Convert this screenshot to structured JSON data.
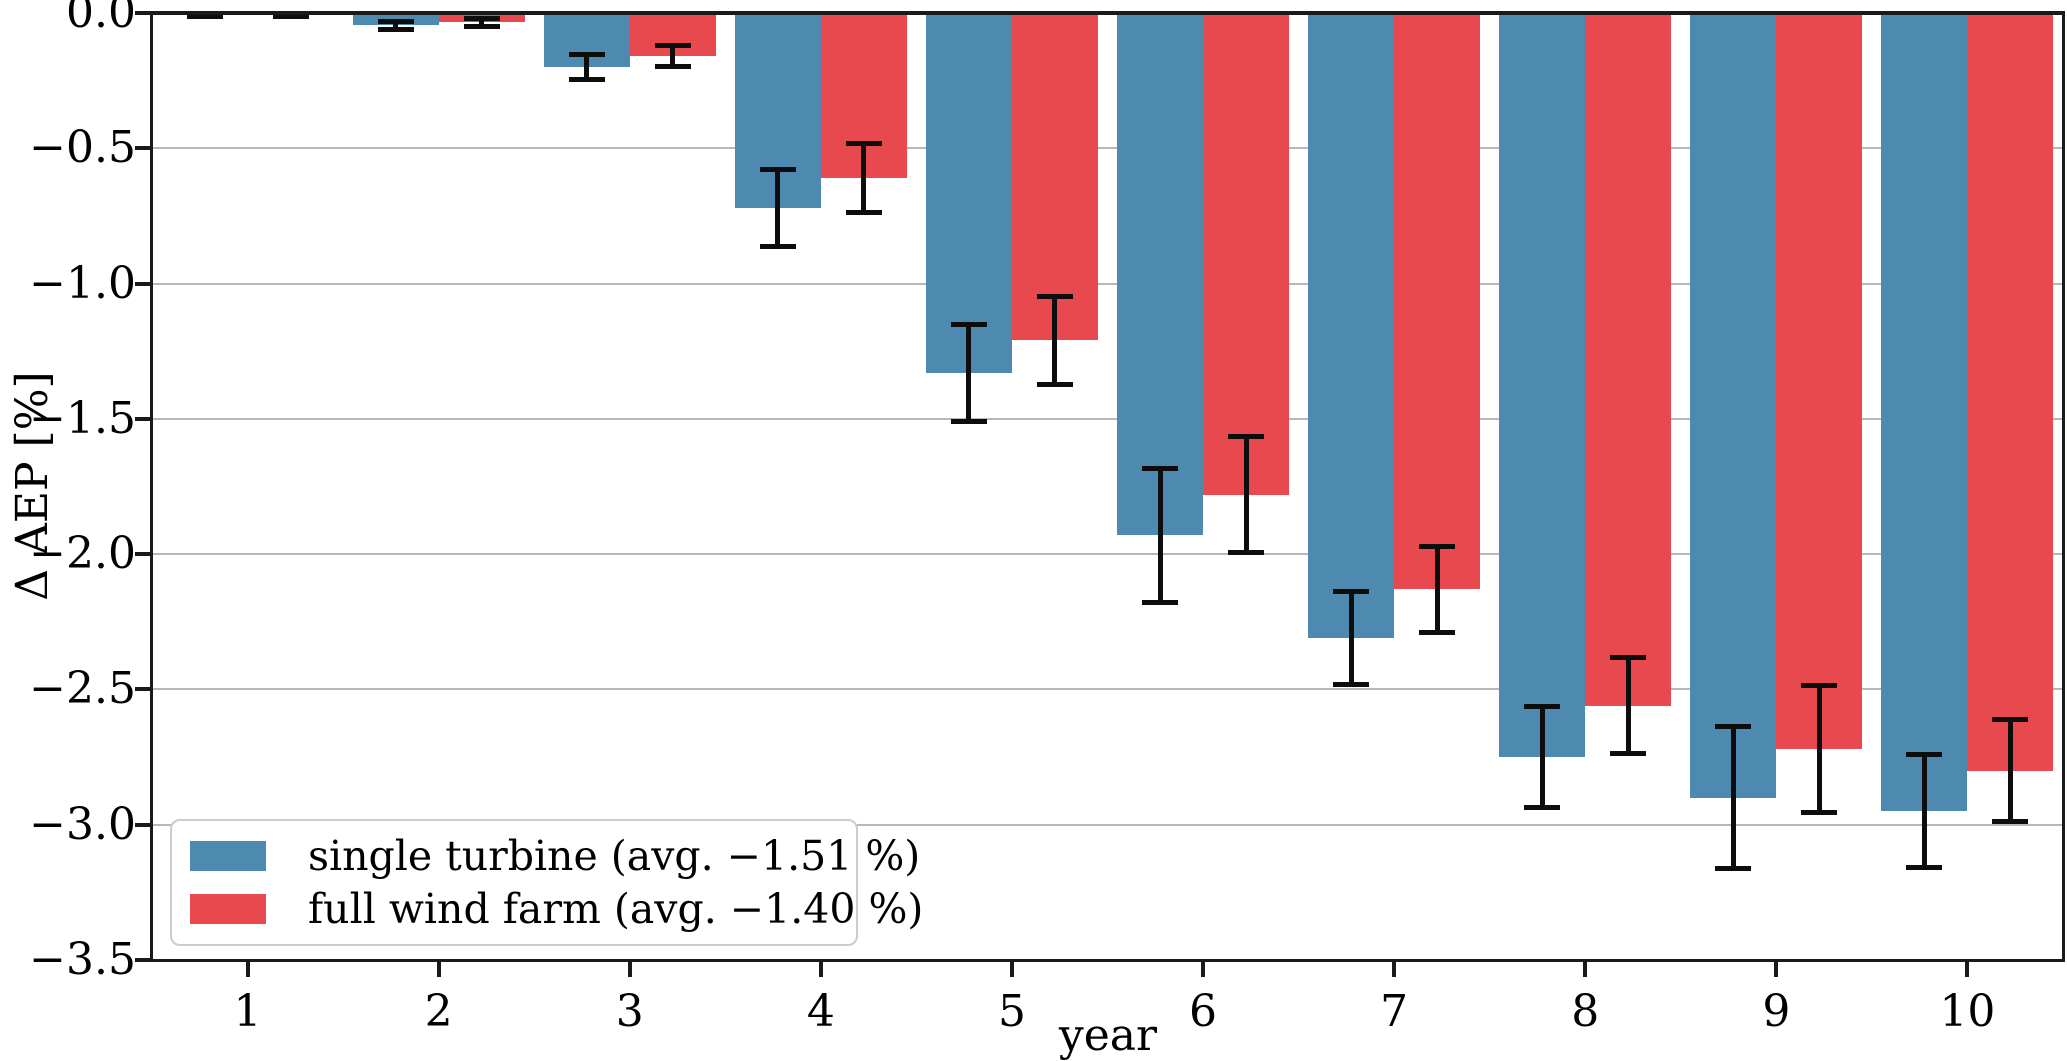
{
  "chart_data": {
    "type": "bar",
    "title": "",
    "xlabel": "year",
    "ylabel": "Δ AEP [%]",
    "categories": [
      "1",
      "2",
      "3",
      "4",
      "5",
      "6",
      "7",
      "8",
      "9",
      "10"
    ],
    "ylim": [
      0.0,
      -3.5
    ],
    "yticks": [
      {
        "value": 0.0,
        "label": "0.0"
      },
      {
        "value": -0.5,
        "label": "−0.5"
      },
      {
        "value": -1.0,
        "label": "−1.0"
      },
      {
        "value": -1.5,
        "label": "−1.5"
      },
      {
        "value": -2.0,
        "label": "−2.0"
      },
      {
        "value": -2.5,
        "label": "−2.5"
      },
      {
        "value": -3.0,
        "label": "−3.0"
      },
      {
        "value": -3.5,
        "label": "−3.5"
      }
    ],
    "grid": "horizontal",
    "legend_position": "lower left",
    "error_bar_color": "#0d0d0d",
    "series": [
      {
        "key": "single-turbine",
        "name": "single turbine (avg. −1.51 %)",
        "color": "#4e8ab0",
        "values": [
          -0.005,
          -0.045,
          -0.2,
          -0.72,
          -1.33,
          -1.93,
          -2.31,
          -2.75,
          -2.9,
          -2.95
        ],
        "errors": [
          0.008,
          0.017,
          0.048,
          0.145,
          0.18,
          0.25,
          0.175,
          0.19,
          0.265,
          0.21
        ]
      },
      {
        "key": "full-wind-farm",
        "name": "full wind farm (avg. −1.40 %)",
        "color": "#e8494f",
        "values": [
          -0.005,
          -0.035,
          -0.16,
          -0.61,
          -1.21,
          -1.78,
          -2.13,
          -2.56,
          -2.72,
          -2.8
        ],
        "errors": [
          0.008,
          0.016,
          0.04,
          0.13,
          0.165,
          0.215,
          0.16,
          0.18,
          0.235,
          0.19
        ]
      }
    ]
  }
}
